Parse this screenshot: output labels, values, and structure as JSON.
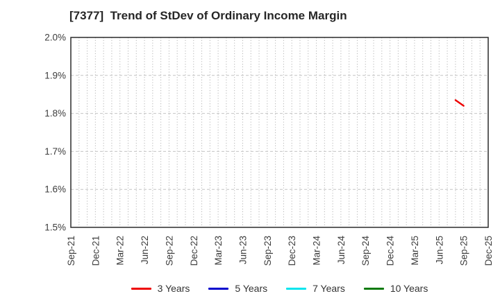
{
  "header": {
    "title": "[7377]  Trend of StDev of Ordinary Income Margin"
  },
  "chart_data": {
    "type": "line",
    "title": "[7377]  Trend of StDev of Ordinary Income Margin",
    "xlabel": "",
    "ylabel": "",
    "y_axis": {
      "min": 1.5,
      "max": 2.0,
      "tick_step": 0.1,
      "unit": "%",
      "tick_labels": [
        "2.0%",
        "1.9%",
        "1.8%",
        "1.7%",
        "1.6%",
        "1.5%"
      ]
    },
    "x_axis": {
      "tick_labels": [
        "Sep-21",
        "Dec-21",
        "Mar-22",
        "Jun-22",
        "Sep-22",
        "Dec-22",
        "Mar-23",
        "Jun-23",
        "Sep-23",
        "Dec-23",
        "Mar-24",
        "Jun-24",
        "Sep-24",
        "Dec-24",
        "Mar-25",
        "Jun-25",
        "Sep-25",
        "Dec-25"
      ],
      "months_per_tick": 3,
      "minor_gridlines": "monthly"
    },
    "grid": {
      "horizontal_style": "dashed",
      "vertical_style": "dotted",
      "color": "#bdbdbd"
    },
    "legend_position": "bottom",
    "series": [
      {
        "name": "3 Years",
        "color": "#ee0000",
        "points": [
          {
            "x": "Aug-25",
            "y": 1.835
          },
          {
            "x": "Sep-25",
            "y": 1.82
          }
        ]
      },
      {
        "name": "5 Years",
        "color": "#0000cd",
        "points": []
      },
      {
        "name": "7 Years",
        "color": "#00e5ee",
        "points": []
      },
      {
        "name": "10 Years",
        "color": "#0b7a0b",
        "points": []
      }
    ]
  },
  "styles": {
    "axis_border_color": "#2a2a2a",
    "tick_label_color": "#3c3c3c",
    "h_grid_color": "#c4c4c4",
    "v_grid_color": "#b5b5b5"
  }
}
